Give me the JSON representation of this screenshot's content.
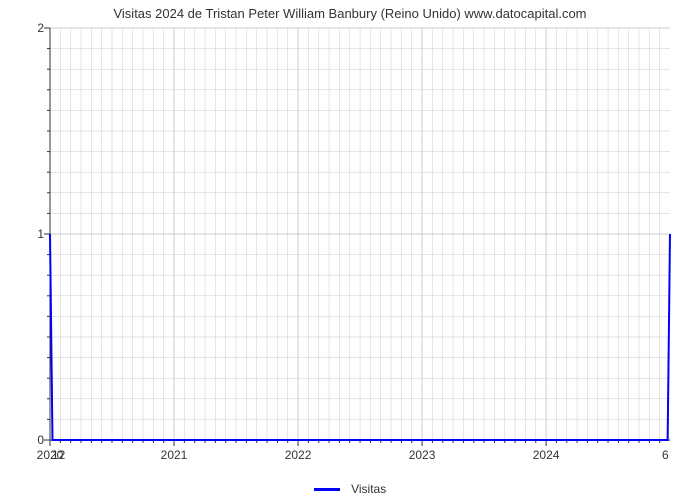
{
  "chart": {
    "type": "line",
    "title": "Visitas 2024 de Tristan Peter William Banbury (Reino Unido) www.datocapital.com",
    "title_fontsize": 13,
    "title_color": "#333333",
    "background_color": "#ffffff",
    "plot_background": "#ffffff",
    "axis_color": "#333333",
    "grid_color": "#cccccc",
    "grid_on": true,
    "line_color": "#0000ff",
    "line_width": 2,
    "x_axis": {
      "min": 2020,
      "max": 2024.999,
      "tick_labels": [
        "2020",
        "2021",
        "2022",
        "2023",
        "2024"
      ],
      "tick_positions": [
        2020,
        2021,
        2022,
        2023,
        2024
      ],
      "minor_ticks_per_major": 11,
      "label_fontsize": 12
    },
    "y_axis": {
      "min": 0,
      "max": 2,
      "tick_labels": [
        "0",
        "1",
        "2"
      ],
      "tick_positions": [
        0,
        1,
        2
      ],
      "minor_ticks_per_major": 9,
      "label_fontsize": 12
    },
    "secondary_labels": {
      "top_left": "12",
      "bottom_right": "6"
    },
    "series": {
      "name": "Visitas",
      "x": [
        2020.0,
        2020.02,
        2020.09,
        2024.92,
        2024.98,
        2024.999
      ],
      "y": [
        1.0,
        0.0,
        0.0,
        0.0,
        0.0,
        1.0
      ]
    },
    "legend": {
      "label": "Visitas",
      "position": "bottom-center",
      "fontsize": 12
    }
  }
}
